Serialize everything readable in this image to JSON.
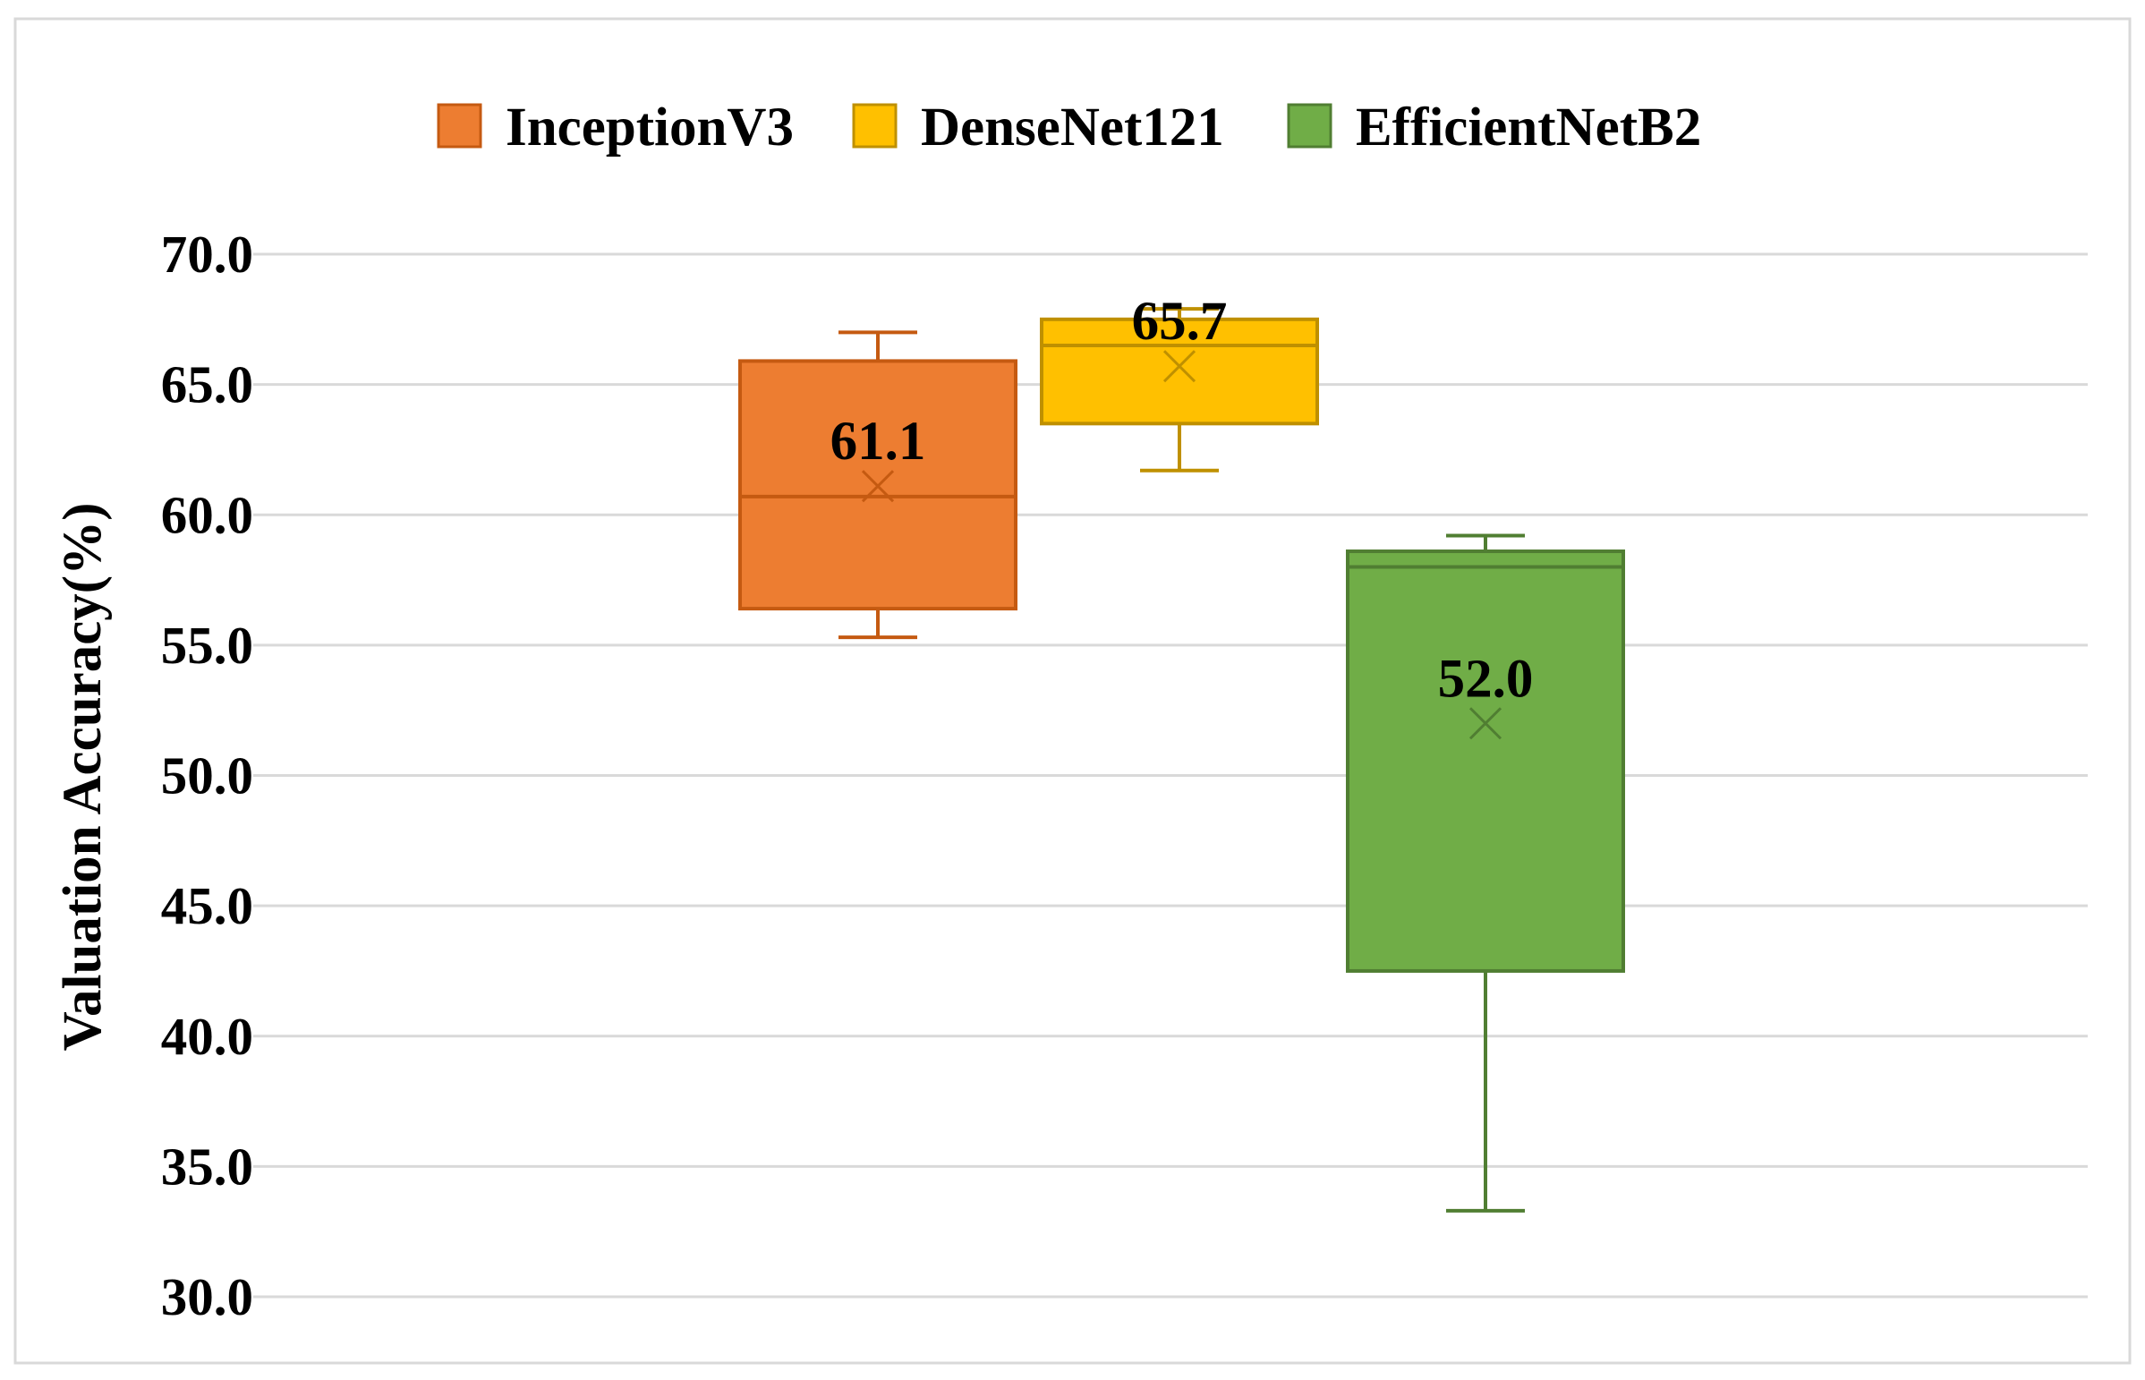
{
  "chart_data": {
    "type": "box",
    "title": "",
    "ylabel": "Valuation Accuracy(%)",
    "xlabel": "",
    "ylim": [
      30,
      70
    ],
    "yticks": [
      30,
      35,
      40,
      45,
      50,
      55,
      60,
      65,
      70
    ],
    "ytick_labels": [
      "30.0",
      "35.0",
      "40.0",
      "45.0",
      "50.0",
      "55.0",
      "60.0",
      "65.0",
      "70.0"
    ],
    "grid": true,
    "legend_position": "top",
    "series": [
      {
        "name": "InceptionV3",
        "color": "#ED7D31",
        "edge": "#C55A11",
        "min": 55.3,
        "q1": 56.4,
        "median": 60.7,
        "q3": 65.9,
        "max": 67.0,
        "mean": 61.1,
        "mean_label": "61.1"
      },
      {
        "name": "DenseNet121",
        "color": "#FFC000",
        "edge": "#BF9000",
        "min": 61.7,
        "q1": 63.5,
        "median": 66.5,
        "q3": 67.5,
        "max": 67.9,
        "mean": 65.7,
        "mean_label": "65.7"
      },
      {
        "name": "EfficientNetB2",
        "color": "#70AD47",
        "edge": "#507E32",
        "min": 33.3,
        "q1": 42.5,
        "median": 58.0,
        "q3": 58.6,
        "max": 59.2,
        "mean": 52.0,
        "mean_label": "52.0"
      }
    ]
  }
}
